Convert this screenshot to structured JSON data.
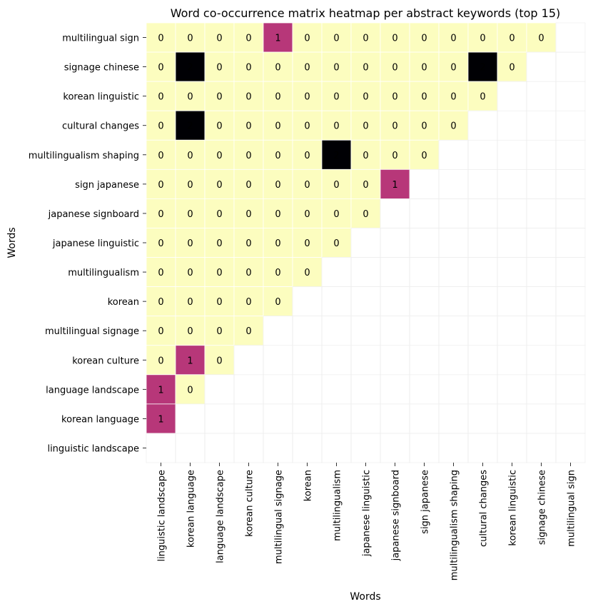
{
  "chart_data": {
    "type": "heatmap",
    "title": "Word co-occurrence matrix heatmap per abstract keywords (top 15)",
    "xlabel": "Words",
    "ylabel": "Words",
    "x_categories": [
      "linguistic landscape",
      "korean language",
      "language landscape",
      "korean culture",
      "multilingual signage",
      "korean",
      "multilingualism",
      "japanese linguistic",
      "japanese signboard",
      "sign japanese",
      "multilingualism shaping",
      "cultural changes",
      "korean linguistic",
      "signage chinese",
      "multilingual sign"
    ],
    "y_categories": [
      "multilingual sign",
      "signage chinese",
      "korean linguistic",
      "cultural changes",
      "multilingualism shaping",
      "sign japanese",
      "japanese signboard",
      "japanese linguistic",
      "multilingualism",
      "korean",
      "multilingual signage",
      "korean culture",
      "language landscape",
      "korean language",
      "linguistic landscape"
    ],
    "values": [
      [
        0,
        0,
        0,
        0,
        1,
        0,
        0,
        0,
        0,
        0,
        0,
        0,
        0,
        0,
        null
      ],
      [
        0,
        2,
        0,
        0,
        0,
        0,
        0,
        0,
        0,
        0,
        0,
        2,
        0,
        null,
        null
      ],
      [
        0,
        0,
        0,
        0,
        0,
        0,
        0,
        0,
        0,
        0,
        0,
        0,
        null,
        null,
        null
      ],
      [
        0,
        2,
        0,
        0,
        0,
        0,
        0,
        0,
        0,
        0,
        0,
        null,
        null,
        null,
        null
      ],
      [
        0,
        0,
        0,
        0,
        0,
        0,
        2,
        0,
        0,
        0,
        null,
        null,
        null,
        null,
        null
      ],
      [
        0,
        0,
        0,
        0,
        0,
        0,
        0,
        0,
        1,
        null,
        null,
        null,
        null,
        null,
        null
      ],
      [
        0,
        0,
        0,
        0,
        0,
        0,
        0,
        0,
        null,
        null,
        null,
        null,
        null,
        null,
        null
      ],
      [
        0,
        0,
        0,
        0,
        0,
        0,
        0,
        null,
        null,
        null,
        null,
        null,
        null,
        null,
        null
      ],
      [
        0,
        0,
        0,
        0,
        0,
        0,
        null,
        null,
        null,
        null,
        null,
        null,
        null,
        null,
        null
      ],
      [
        0,
        0,
        0,
        0,
        0,
        null,
        null,
        null,
        null,
        null,
        null,
        null,
        null,
        null,
        null
      ],
      [
        0,
        0,
        0,
        0,
        null,
        null,
        null,
        null,
        null,
        null,
        null,
        null,
        null,
        null,
        null
      ],
      [
        0,
        1,
        0,
        null,
        null,
        null,
        null,
        null,
        null,
        null,
        null,
        null,
        null,
        null,
        null
      ],
      [
        1,
        0,
        null,
        null,
        null,
        null,
        null,
        null,
        null,
        null,
        null,
        null,
        null,
        null,
        null
      ],
      [
        1,
        null,
        null,
        null,
        null,
        null,
        null,
        null,
        null,
        null,
        null,
        null,
        null,
        null,
        null
      ],
      [
        null,
        null,
        null,
        null,
        null,
        null,
        null,
        null,
        null,
        null,
        null,
        null,
        null,
        null,
        null
      ]
    ],
    "value_range": [
      0,
      2
    ],
    "annotated": true,
    "colorbar": false,
    "mask": "upper triangle and diagonal left blank",
    "colors": {
      "0": "#fcfdbf",
      "1": "#b73779",
      "2": "#000004",
      "annotation_light": "#ffffff",
      "annotation_dark": "#000000"
    }
  }
}
